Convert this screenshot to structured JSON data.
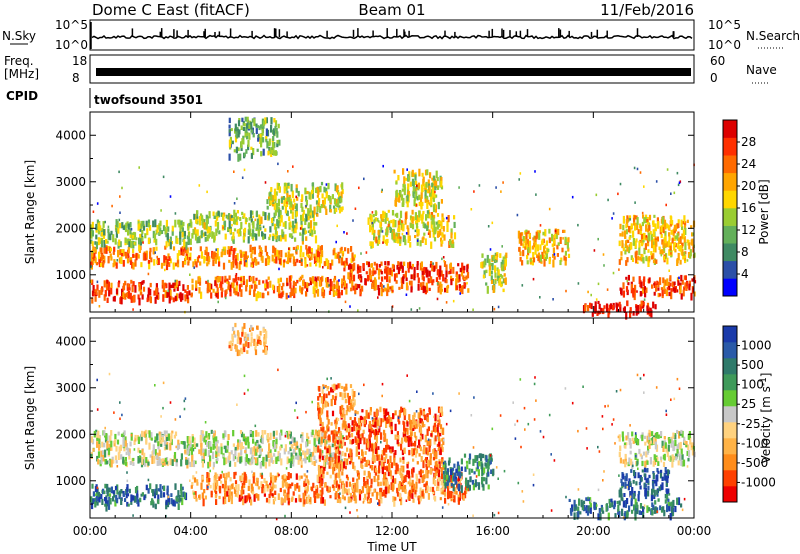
{
  "header": {
    "station": "Dome C East (fitACF)",
    "beam": "Beam 01",
    "date": "11/Feb/2016"
  },
  "strip": {
    "nsky_label": "N.Sky",
    "nsky_ticks": [
      "10^5",
      "10^0"
    ],
    "nsearch_label": "N.Search",
    "nsearch_ticks": [
      "10^5",
      "10^0"
    ],
    "freq_label_line1": "Freq.",
    "freq_label_line2": "[MHz]",
    "freq_ticks": [
      "18",
      "8"
    ],
    "nave_label": "Nave",
    "nave_ticks": [
      "60",
      "0"
    ],
    "cpid_label": "CPID",
    "cpid_value": "twofsound 3501"
  },
  "chart_data": [
    {
      "type": "heatmap",
      "name": "power",
      "ylabel": "Slant Range [km]",
      "ylim": [
        200,
        4500
      ],
      "yticks": [
        1000,
        2000,
        3000,
        4000
      ],
      "xlim": [
        0,
        24
      ],
      "colorbar": {
        "label": "Power [dB]",
        "ticks": [
          "28",
          "24",
          "20",
          "16",
          "12",
          "8",
          "4"
        ],
        "colors": [
          "#0000ff",
          "#2b4fa8",
          "#3f8a63",
          "#63b05a",
          "#9acd32",
          "#ffd700",
          "#ffa500",
          "#ff6a00",
          "#ff3000",
          "#dd0000"
        ]
      },
      "regions": [
        {
          "t0": 0.0,
          "t1": 4.0,
          "r0": 500,
          "r1": 900,
          "level": 0.85
        },
        {
          "t0": 0.0,
          "t1": 10.5,
          "r0": 1250,
          "r1": 1650,
          "level": 0.7
        },
        {
          "t0": 0.0,
          "t1": 4.0,
          "r0": 1700,
          "r1": 2200,
          "level": 0.4
        },
        {
          "t0": 4.0,
          "t1": 10.0,
          "r0": 600,
          "r1": 1000,
          "level": 0.75
        },
        {
          "t0": 4.0,
          "t1": 9.0,
          "r0": 1800,
          "r1": 2400,
          "level": 0.45
        },
        {
          "t0": 7.0,
          "t1": 10.0,
          "r0": 2400,
          "r1": 3000,
          "level": 0.5
        },
        {
          "t0": 10.0,
          "t1": 15.0,
          "r0": 700,
          "r1": 1300,
          "level": 0.8
        },
        {
          "t0": 11.0,
          "t1": 14.5,
          "r0": 1700,
          "r1": 2400,
          "level": 0.55
        },
        {
          "t0": 12.0,
          "t1": 14.0,
          "r0": 2500,
          "r1": 3300,
          "level": 0.5
        },
        {
          "t0": 15.5,
          "t1": 16.5,
          "r0": 700,
          "r1": 1500,
          "level": 0.5
        },
        {
          "t0": 17.0,
          "t1": 19.0,
          "r0": 1300,
          "r1": 2000,
          "level": 0.6
        },
        {
          "t0": 19.5,
          "t1": 22.5,
          "r0": 200,
          "r1": 450,
          "level": 0.95
        },
        {
          "t0": 21.0,
          "t1": 24.0,
          "r0": 600,
          "r1": 1000,
          "level": 0.85
        },
        {
          "t0": 21.0,
          "t1": 24.0,
          "r0": 1300,
          "r1": 2300,
          "level": 0.6
        },
        {
          "t0": 5.5,
          "t1": 7.5,
          "r0": 3600,
          "r1": 4400,
          "level": 0.35
        }
      ]
    },
    {
      "type": "heatmap",
      "name": "velocity",
      "ylabel": "Slant Range [km]",
      "xlabel": "Time UT",
      "ylim": [
        200,
        4500
      ],
      "yticks": [
        1000,
        2000,
        3000,
        4000
      ],
      "xlim": [
        0,
        24
      ],
      "xticks": [
        "00:00",
        "04:00",
        "08:00",
        "12:00",
        "16:00",
        "20:00",
        "00:00"
      ],
      "colorbar": {
        "label": "Velocity [m s^-1]",
        "ticks": [
          "1000",
          "500",
          "100",
          "25",
          "-25",
          "-100",
          "-500",
          "-1000"
        ],
        "colors": [
          "#ee0000",
          "#ff4000",
          "#ff8c1a",
          "#ffb347",
          "#ffd27f",
          "#c8c8c8",
          "#66cc33",
          "#3f9a5a",
          "#2f7a6a",
          "#2a5aa8",
          "#1a3aaa"
        ]
      },
      "regions": [
        {
          "t0": 0.0,
          "t1": 3.8,
          "r0": 500,
          "r1": 950,
          "level": 0.8
        },
        {
          "t0": 0.0,
          "t1": 10.0,
          "r0": 1400,
          "r1": 2100,
          "level": 0.5
        },
        {
          "t0": 4.0,
          "t1": 15.0,
          "r0": 600,
          "r1": 1200,
          "level": 0.25
        },
        {
          "t0": 9.0,
          "t1": 14.0,
          "r0": 1200,
          "r1": 2600,
          "level": 0.2
        },
        {
          "t0": 9.0,
          "t1": 10.5,
          "r0": 2600,
          "r1": 3100,
          "level": 0.25
        },
        {
          "t0": 14.0,
          "t1": 16.0,
          "r0": 900,
          "r1": 1600,
          "level": 0.75
        },
        {
          "t0": 19.0,
          "t1": 23.5,
          "r0": 300,
          "r1": 650,
          "level": 0.8
        },
        {
          "t0": 21.0,
          "t1": 24.0,
          "r0": 1400,
          "r1": 2100,
          "level": 0.5
        },
        {
          "t0": 21.0,
          "t1": 23.0,
          "r0": 700,
          "r1": 1300,
          "level": 0.9
        },
        {
          "t0": 5.5,
          "t1": 7.0,
          "r0": 3800,
          "r1": 4400,
          "level": 0.3
        }
      ]
    }
  ]
}
